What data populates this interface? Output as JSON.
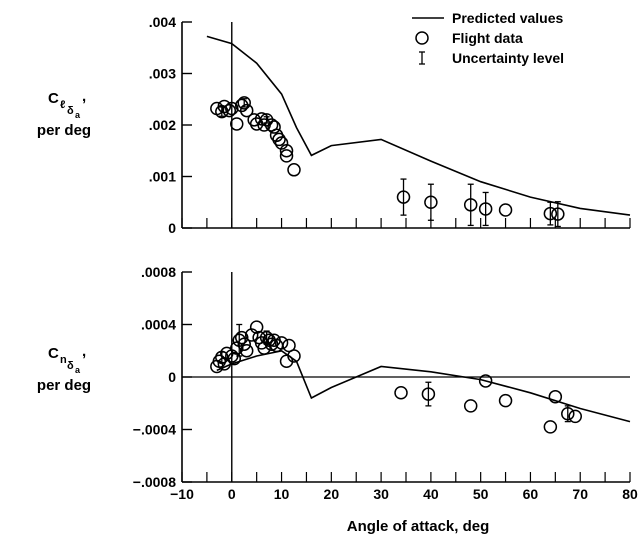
{
  "chart_data": [
    {
      "type": "scatter",
      "panel": "top",
      "ylabel": {
        "symbol": "C",
        "sub": "ℓ",
        "sub2a": "δ",
        "sub2b": "a",
        "suffix": ",",
        "per": "per deg"
      },
      "xlim": [
        -10,
        80
      ],
      "ylim": [
        0,
        0.004
      ],
      "yticks": [
        {
          "value": 0,
          "label": "0"
        },
        {
          "value": 0.001,
          "label": ".001"
        },
        {
          "value": 0.002,
          "label": ".002"
        },
        {
          "value": 0.003,
          "label": ".003"
        },
        {
          "value": 0.004,
          "label": ".004"
        }
      ],
      "xticks_minor": [
        -10,
        -5,
        0,
        5,
        10,
        15,
        20,
        25,
        30,
        35,
        40,
        45,
        50,
        55,
        60,
        65,
        70,
        75,
        80
      ],
      "zero_vertical_line": true,
      "predicted": [
        [
          -5,
          0.00372
        ],
        [
          0,
          0.00358
        ],
        [
          5,
          0.0032
        ],
        [
          10,
          0.0026
        ],
        [
          13,
          0.00195
        ],
        [
          16,
          0.00141
        ],
        [
          20,
          0.0016
        ],
        [
          30,
          0.00172
        ],
        [
          40,
          0.0013
        ],
        [
          50,
          0.0009
        ],
        [
          60,
          0.0006
        ],
        [
          70,
          0.00038
        ],
        [
          80,
          0.00025
        ]
      ],
      "flight": [
        [
          -3,
          0.00232
        ],
        [
          -2,
          0.00226
        ],
        [
          -1.5,
          0.00236
        ],
        [
          -0.5,
          0.00228
        ],
        [
          0,
          0.00232
        ],
        [
          1,
          0.00202
        ],
        [
          2,
          0.00238
        ],
        [
          2.5,
          0.00243
        ],
        [
          3,
          0.00228
        ],
        [
          4.5,
          0.0021
        ],
        [
          5,
          0.00202
        ],
        [
          6,
          0.00212
        ],
        [
          6.5,
          0.002
        ],
        [
          7,
          0.0021
        ],
        [
          8,
          0.002
        ],
        [
          8.5,
          0.00196
        ],
        [
          9,
          0.0018
        ],
        [
          9.5,
          0.00172
        ],
        [
          10,
          0.00165
        ],
        [
          11,
          0.0015
        ],
        [
          11,
          0.0014
        ],
        [
          12.5,
          0.00113
        ],
        [
          34.5,
          0.0006
        ],
        [
          40,
          0.0005
        ],
        [
          48,
          0.00045
        ],
        [
          51,
          0.00037
        ],
        [
          55,
          0.00035
        ],
        [
          64,
          0.00028
        ],
        [
          65.5,
          0.00027
        ]
      ],
      "uncertainty": [
        [
          -2,
          0.00226,
          9e-05
        ],
        [
          2.5,
          0.00243,
          8e-05
        ],
        [
          7,
          0.0021,
          6e-05
        ],
        [
          34.5,
          0.0006,
          0.00035
        ],
        [
          40,
          0.0005,
          0.00035
        ],
        [
          48,
          0.00045,
          0.0004
        ],
        [
          51,
          0.00037,
          0.00032
        ],
        [
          64,
          0.00028,
          0.00022
        ],
        [
          65.5,
          0.00027,
          0.00024
        ]
      ]
    },
    {
      "type": "scatter",
      "panel": "bottom",
      "ylabel": {
        "symbol": "C",
        "sub": "n",
        "sub2a": "δ",
        "sub2b": "a",
        "suffix": ",",
        "per": "per deg"
      },
      "xlabel": "Angle of attack, deg",
      "xlim": [
        -10,
        80
      ],
      "ylim": [
        -0.0008,
        0.0008
      ],
      "yticks": [
        {
          "value": -0.0008,
          "label": "-.0008"
        },
        {
          "value": -0.0004,
          "label": "-.0004"
        },
        {
          "value": 0,
          "label": "0"
        },
        {
          "value": 0.0004,
          "label": ".0004"
        },
        {
          "value": 0.0008,
          "label": ".0008"
        }
      ],
      "xticks": [
        {
          "value": -10,
          "label": "-10"
        },
        {
          "value": 0,
          "label": "0"
        },
        {
          "value": 10,
          "label": "10"
        },
        {
          "value": 20,
          "label": "20"
        },
        {
          "value": 30,
          "label": "30"
        },
        {
          "value": 40,
          "label": "40"
        },
        {
          "value": 50,
          "label": "50"
        },
        {
          "value": 60,
          "label": "60"
        },
        {
          "value": 70,
          "label": "70"
        },
        {
          "value": 80,
          "label": "80"
        }
      ],
      "xticks_minor": [
        -10,
        -5,
        0,
        5,
        10,
        15,
        20,
        25,
        30,
        35,
        40,
        45,
        50,
        55,
        60,
        65,
        70,
        75,
        80
      ],
      "zero_vertical_line": true,
      "zero_horizontal_line": true,
      "predicted": [
        [
          -3,
          5e-05
        ],
        [
          0,
          0.0001
        ],
        [
          5,
          0.00016
        ],
        [
          10,
          0.0002
        ],
        [
          13,
          0.00012
        ],
        [
          16,
          -0.00016
        ],
        [
          20,
          -8e-05
        ],
        [
          30,
          8e-05
        ],
        [
          40,
          4e-05
        ],
        [
          50,
          -2e-05
        ],
        [
          60,
          -0.00012
        ],
        [
          70,
          -0.00024
        ],
        [
          80,
          -0.00034
        ]
      ],
      "flight": [
        [
          -3,
          8e-05
        ],
        [
          -2.5,
          0.00012
        ],
        [
          -2,
          0.00015
        ],
        [
          -1.5,
          0.0001
        ],
        [
          -1,
          0.00018
        ],
        [
          0,
          0.00016
        ],
        [
          0.5,
          0.00014
        ],
        [
          1,
          0.00022
        ],
        [
          1.5,
          0.00028
        ],
        [
          2,
          0.0003
        ],
        [
          2.5,
          0.00025
        ],
        [
          3,
          0.0002
        ],
        [
          4,
          0.00032
        ],
        [
          5,
          0.00038
        ],
        [
          5.5,
          0.0003
        ],
        [
          6,
          0.00026
        ],
        [
          6.5,
          0.00022
        ],
        [
          7,
          0.0003
        ],
        [
          7.5,
          0.00028
        ],
        [
          8,
          0.00025
        ],
        [
          8.5,
          0.00028
        ],
        [
          9,
          0.00024
        ],
        [
          10,
          0.00026
        ],
        [
          11,
          0.00012
        ],
        [
          11.5,
          0.00024
        ],
        [
          12.5,
          0.00016
        ],
        [
          34,
          -0.00012
        ],
        [
          39.5,
          -0.00013
        ],
        [
          48,
          -0.00022
        ],
        [
          51,
          -3e-05
        ],
        [
          55,
          -0.00018
        ],
        [
          64,
          -0.00038
        ],
        [
          65,
          -0.00015
        ],
        [
          67.5,
          -0.00028
        ],
        [
          69,
          -0.0003
        ]
      ],
      "uncertainty": [
        [
          -2,
          0.00015,
          4e-05
        ],
        [
          1.5,
          0.00028,
          0.00012
        ],
        [
          7,
          0.0003,
          5e-05
        ],
        [
          39.5,
          -0.00013,
          9e-05
        ],
        [
          67.5,
          -0.00028,
          6e-05
        ]
      ]
    }
  ],
  "legend": {
    "placement": "top-right",
    "items": [
      {
        "kind": "line",
        "label": "Predicted values"
      },
      {
        "kind": "circle",
        "label": "Flight data"
      },
      {
        "kind": "ibeam",
        "label": "Uncertainty level"
      }
    ]
  },
  "colors": {
    "ink": "#000000",
    "background": "#ffffff"
  }
}
